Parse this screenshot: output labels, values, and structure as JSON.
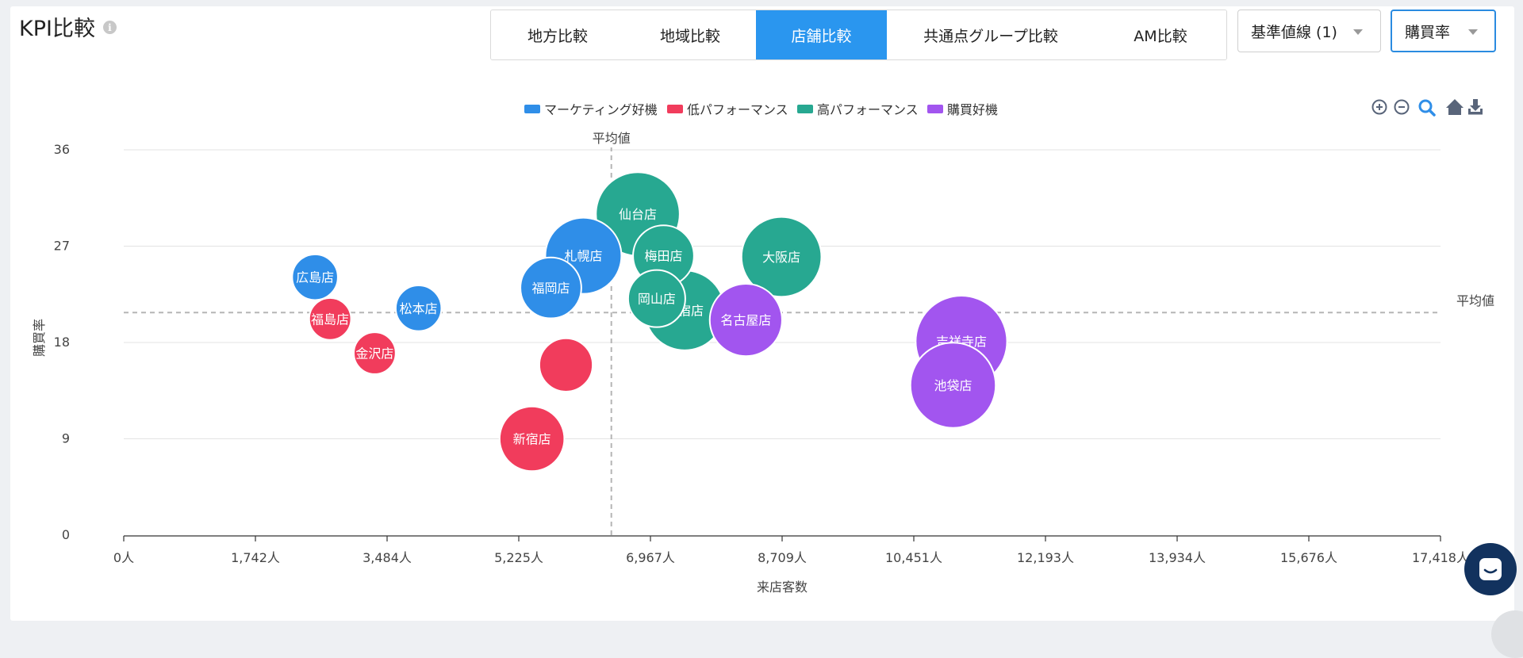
{
  "header": {
    "title": "KPI比較",
    "tabs": [
      {
        "label": "地方比較",
        "active": false
      },
      {
        "label": "地域比較",
        "active": false
      },
      {
        "label": "店舗比較",
        "active": true
      },
      {
        "label": "共通点グループ比較",
        "active": false
      },
      {
        "label": "AM比較",
        "active": false
      }
    ],
    "baseline_select": "基準値線 (1)",
    "metric_select": "購買率"
  },
  "chart_data": {
    "type": "scatter",
    "xlabel": "来店客数",
    "ylabel": "購買率",
    "xlim": [
      0,
      17418
    ],
    "ylim": [
      0,
      36
    ],
    "x_ticks": [
      "0人",
      "1,742人",
      "3,484人",
      "5,225人",
      "6,967人",
      "8,709人",
      "10,451人",
      "12,193人",
      "13,934人",
      "15,676人",
      "17,418人"
    ],
    "y_ticks": [
      "0",
      "9",
      "18",
      "27",
      "36"
    ],
    "grid": true,
    "legend_position": "top-center",
    "series": [
      {
        "name": "マーケティング好機",
        "color": "#2f8ee8",
        "points": [
          {
            "label": "広島店",
            "x": 2530,
            "y": 24.1,
            "size": 0.6
          },
          {
            "label": "松本店",
            "x": 3900,
            "y": 21.2,
            "size": 0.6
          },
          {
            "label": "札幌店",
            "x": 6080,
            "y": 26.1,
            "size": 1.0
          },
          {
            "label": "福岡店",
            "x": 5650,
            "y": 23.1,
            "size": 0.8
          }
        ]
      },
      {
        "name": "低パフォーマンス",
        "color": "#f13c5c",
        "points": [
          {
            "label": "福島店",
            "x": 2730,
            "y": 20.2,
            "size": 0.55
          },
          {
            "label": "金沢店",
            "x": 3320,
            "y": 17.0,
            "size": 0.55
          },
          {
            "label": "",
            "x": 5850,
            "y": 15.9,
            "size": 0.7
          },
          {
            "label": "新宿店",
            "x": 5400,
            "y": 9.0,
            "size": 0.85
          }
        ]
      },
      {
        "name": "高パフォーマンス",
        "color": "#27a891",
        "points": [
          {
            "label": "仙台店",
            "x": 6800,
            "y": 30.0,
            "size": 1.1
          },
          {
            "label": "大阪店",
            "x": 8700,
            "y": 26.0,
            "size": 1.05
          },
          {
            "label": "原宿店",
            "x": 7420,
            "y": 21.0,
            "size": 1.05
          },
          {
            "label": "梅田店",
            "x": 7140,
            "y": 26.1,
            "size": 0.8
          },
          {
            "label": "岡山店",
            "x": 7050,
            "y": 22.1,
            "size": 0.75
          }
        ]
      },
      {
        "name": "購買好機",
        "color": "#a255ef",
        "points": [
          {
            "label": "名古屋店",
            "x": 8230,
            "y": 20.1,
            "size": 0.95
          },
          {
            "label": "吉祥寺店",
            "x": 11080,
            "y": 18.1,
            "size": 1.2
          },
          {
            "label": "池袋店",
            "x": 10970,
            "y": 14.0,
            "size": 1.12
          }
        ]
      }
    ],
    "reference_lines": [
      {
        "axis": "x",
        "value": 6450,
        "label": "平均値"
      },
      {
        "axis": "y",
        "value": 20.8,
        "label": "平均値"
      }
    ]
  },
  "toolbar": {
    "zoom_in": "zoom-in-icon",
    "zoom_out": "zoom-out-icon",
    "zoom_select": "magnifier-icon",
    "reset": "home-icon",
    "download": "download-icon"
  }
}
